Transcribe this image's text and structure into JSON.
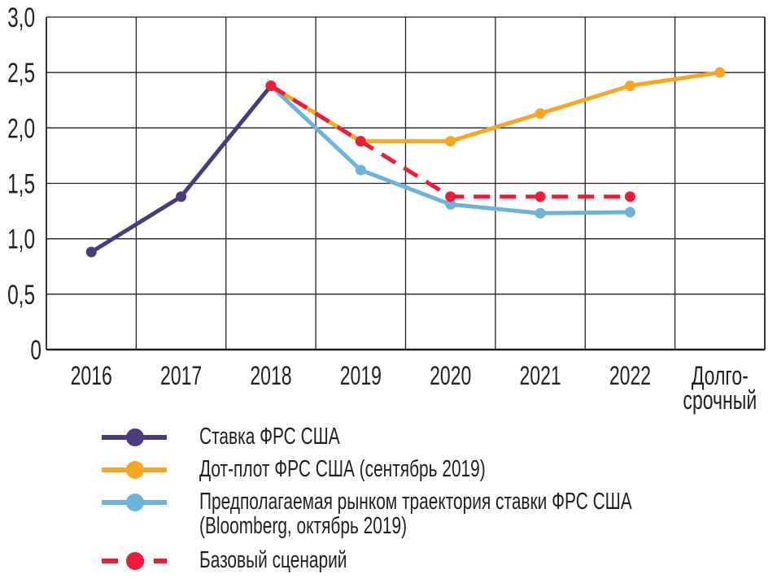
{
  "chart_data": {
    "type": "line",
    "title": "",
    "xlabel": "",
    "ylabel": "",
    "categories": [
      "2016",
      "2017",
      "2018",
      "2019",
      "2020",
      "2021",
      "2022",
      "Долго-\nсрочный\nпериод"
    ],
    "y_ticks": [
      "0",
      "0,5",
      "1,0",
      "1,5",
      "2,0",
      "2,5",
      "3,0"
    ],
    "y_tick_values": [
      0,
      0.5,
      1.0,
      1.5,
      2.0,
      2.5,
      3.0
    ],
    "ylim": [
      0,
      3.0
    ],
    "grid": true,
    "legend_position": "bottom",
    "series": [
      {
        "name": "Ставка ФРС США",
        "color": "#4b3a7d",
        "dashed": false,
        "values": [
          0.88,
          1.38,
          2.38,
          null,
          null,
          null,
          null,
          null
        ]
      },
      {
        "name": "Дот-плот ФРС США (сентябрь 2019)",
        "color": "#f5a623",
        "dashed": false,
        "values": [
          null,
          null,
          2.38,
          1.88,
          1.88,
          2.13,
          2.38,
          2.5
        ],
        "marker_from": 3
      },
      {
        "name": "Предполагаемая рынком траектория ставки ФРС США\n(Bloomberg, октябрь 2019)",
        "color": "#6ab4db",
        "dashed": false,
        "values": [
          null,
          null,
          2.38,
          1.62,
          1.31,
          1.23,
          1.24,
          null
        ],
        "marker_from": 3
      },
      {
        "name": "Базовый сценарий",
        "color": "#ec1c3a",
        "dashed": true,
        "values": [
          null,
          null,
          2.38,
          1.88,
          1.38,
          1.38,
          1.38,
          null
        ],
        "marker_from": 2
      }
    ]
  }
}
